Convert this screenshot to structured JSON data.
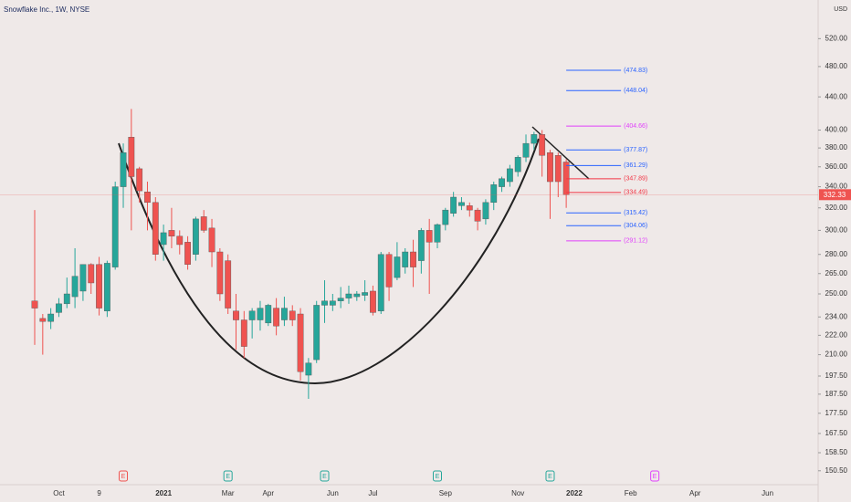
{
  "chart_data": {
    "type": "candlestick",
    "title": "Snowflake Inc., 1W, NYSE",
    "currency": "USD",
    "log_scale": true,
    "up_color": "#26a69a",
    "down_color": "#ef5350",
    "categories": [
      null,
      null,
      null,
      "Oct",
      null,
      null,
      null,
      null,
      "9",
      null,
      null,
      null,
      null,
      null,
      null,
      null,
      "2021",
      null,
      null,
      null,
      null,
      null,
      null,
      null,
      "Mar",
      null,
      null,
      null,
      null,
      "Apr",
      null,
      null,
      null,
      null,
      null,
      null,
      null,
      "Jun",
      null,
      null,
      null,
      null,
      "Jul",
      null,
      null,
      null,
      null,
      null,
      null,
      null,
      null,
      "Sep",
      null,
      null,
      null,
      null,
      null,
      null,
      null,
      null,
      "Nov",
      null,
      null,
      null,
      null,
      null,
      null,
      "2022",
      null,
      null,
      null,
      null,
      null,
      null,
      "Feb",
      null,
      null,
      null,
      null,
      null,
      null,
      null,
      "Apr",
      null,
      null,
      null,
      null,
      null,
      null,
      null,
      null,
      "Jun",
      null,
      null,
      null,
      null
    ],
    "open": [
      245,
      233,
      231,
      237,
      243,
      248,
      252,
      272,
      272,
      238,
      270,
      340,
      392,
      358,
      335,
      325,
      288,
      300,
      295,
      290,
      280,
      312,
      302,
      282,
      275,
      238,
      232,
      232,
      232,
      230,
      240,
      232,
      238,
      236,
      198,
      207,
      242,
      242,
      245,
      247,
      248,
      249,
      252,
      238,
      280,
      262,
      270,
      282,
      275,
      300,
      290,
      305,
      315,
      322,
      322,
      318,
      310,
      325,
      340,
      345,
      355,
      370,
      385,
      395,
      375,
      372,
      365,
      null,
      null,
      null,
      null,
      null,
      null,
      null,
      null,
      null,
      null,
      null,
      null,
      null,
      null,
      null,
      null,
      null,
      null,
      null,
      null,
      null,
      null,
      null,
      null,
      null,
      null,
      null,
      null,
      null
    ],
    "high": [
      318,
      236,
      240,
      247,
      262,
      285,
      272,
      273,
      278,
      275,
      345,
      385,
      425,
      360,
      345,
      330,
      305,
      320,
      300,
      295,
      312,
      318,
      310,
      285,
      280,
      250,
      238,
      240,
      245,
      243,
      247,
      248,
      242,
      240,
      208,
      245,
      260,
      250,
      255,
      256,
      252,
      260,
      256,
      282,
      282,
      290,
      285,
      292,
      302,
      310,
      306,
      320,
      335,
      330,
      325,
      320,
      328,
      345,
      350,
      362,
      372,
      395,
      398,
      400,
      378,
      375,
      368,
      null,
      null,
      null,
      null,
      null,
      null,
      null,
      null,
      null,
      null,
      null,
      null,
      null,
      null,
      null,
      null,
      null,
      null,
      null,
      null,
      null,
      null,
      null,
      null,
      null,
      null,
      null,
      null,
      null
    ],
    "low": [
      216,
      210,
      226,
      234,
      240,
      240,
      245,
      250,
      235,
      234,
      268,
      320,
      300,
      325,
      300,
      275,
      275,
      285,
      280,
      268,
      275,
      298,
      270,
      245,
      236,
      213,
      208,
      220,
      225,
      228,
      222,
      228,
      228,
      195,
      185,
      205,
      230,
      238,
      240,
      243,
      245,
      245,
      235,
      236,
      245,
      260,
      265,
      255,
      265,
      250,
      285,
      300,
      312,
      318,
      312,
      300,
      305,
      318,
      335,
      340,
      350,
      365,
      378,
      350,
      310,
      330,
      320,
      null,
      null,
      null,
      null,
      null,
      null,
      null,
      null,
      null,
      null,
      null,
      null,
      null,
      null,
      null,
      null,
      null,
      null,
      null,
      null,
      null,
      null,
      null,
      null,
      null,
      null,
      null,
      null,
      null
    ],
    "close": [
      240,
      231,
      236,
      243,
      250,
      263,
      272,
      258,
      240,
      273,
      340,
      375,
      350,
      336,
      325,
      280,
      298,
      295,
      288,
      272,
      310,
      300,
      282,
      250,
      240,
      232,
      215,
      238,
      240,
      242,
      228,
      240,
      232,
      200,
      205,
      242,
      245,
      245,
      247,
      250,
      250,
      251,
      237,
      280,
      255,
      278,
      282,
      270,
      300,
      290,
      305,
      318,
      330,
      325,
      318,
      308,
      325,
      342,
      348,
      358,
      370,
      385,
      395,
      372,
      345,
      345,
      332.33,
      null,
      null,
      null,
      null,
      null,
      null,
      null,
      null,
      null,
      null,
      null,
      null,
      null,
      null,
      null,
      null,
      null,
      null,
      null,
      null,
      null,
      null,
      null,
      null,
      null,
      null,
      null,
      null,
      null
    ],
    "ylim": [
      145,
      581
    ],
    "yticks": [
      {
        "value": 150.5,
        "label": "150.50"
      },
      {
        "value": 158.5,
        "label": "158.50"
      },
      {
        "value": 167.5,
        "label": "167.50"
      },
      {
        "value": 177.5,
        "label": "177.50"
      },
      {
        "value": 187.5,
        "label": "187.50"
      },
      {
        "value": 197.5,
        "label": "197.50"
      },
      {
        "value": 210,
        "label": "210.00"
      },
      {
        "value": 222,
        "label": "222.00"
      },
      {
        "value": 234,
        "label": "234.00"
      },
      {
        "value": 250,
        "label": "250.00"
      },
      {
        "value": 265,
        "label": "265.00"
      },
      {
        "value": 280,
        "label": "280.00"
      },
      {
        "value": 300,
        "label": "300.00"
      },
      {
        "value": 320,
        "label": "320.00"
      },
      {
        "value": 340,
        "label": "340.00"
      },
      {
        "value": 360,
        "label": "360.00"
      },
      {
        "value": 380,
        "label": "380.00"
      },
      {
        "value": 400,
        "label": "400.00"
      },
      {
        "value": 440,
        "label": "440.00"
      },
      {
        "value": 480,
        "label": "480.00"
      },
      {
        "value": 520,
        "label": "520.00"
      }
    ],
    "levels": [
      {
        "value": 474.83,
        "label": "(474.83)",
        "color": "#2962ff"
      },
      {
        "value": 448.04,
        "label": "(448.04)",
        "color": "#2962ff"
      },
      {
        "value": 404.66,
        "label": "(404.66)",
        "color": "#e040fb"
      },
      {
        "value": 377.87,
        "label": "(377.87)",
        "color": "#2962ff"
      },
      {
        "value": 361.29,
        "label": "(361.29)",
        "color": "#2962ff"
      },
      {
        "value": 347.89,
        "label": "(347.89)",
        "color": "#f23645"
      },
      {
        "value": 334.49,
        "label": "(334.49)",
        "color": "#f23645"
      },
      {
        "value": 315.42,
        "label": "(315.42)",
        "color": "#2962ff"
      },
      {
        "value": 304.06,
        "label": "(304.06)",
        "color": "#2962ff"
      },
      {
        "value": 291.12,
        "label": "(291.12)",
        "color": "#e040fb"
      }
    ],
    "earnings": [
      {
        "index": 11,
        "label": "E",
        "color": "#ef5350"
      },
      {
        "index": 24,
        "label": "E",
        "color": "#26a69a"
      },
      {
        "index": 36,
        "label": "E",
        "color": "#26a69a"
      },
      {
        "index": 50,
        "label": "E",
        "color": "#26a69a"
      },
      {
        "index": 64,
        "label": "E",
        "color": "#26a69a"
      },
      {
        "index": 77,
        "label": "E",
        "color": "#e040fb"
      }
    ]
  }
}
